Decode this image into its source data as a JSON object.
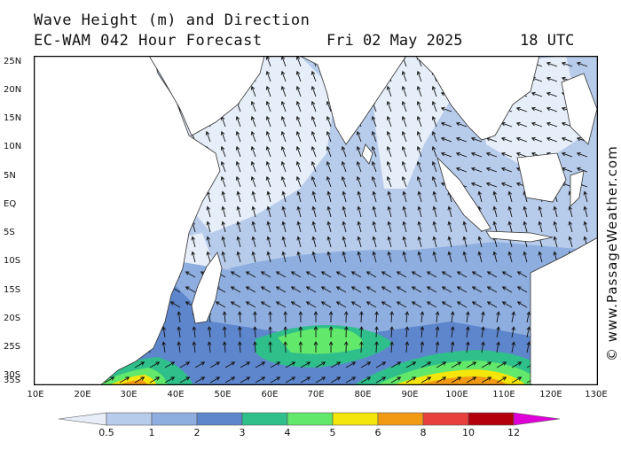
{
  "header": {
    "title": "Wave Height (m) and Direction",
    "model_line": "EC-WAM 042 Hour Forecast",
    "date": "Fri 02 May 2025",
    "time": "18 UTC"
  },
  "credit": "© www.PassageWeather.com",
  "axes": {
    "lat_labels": [
      "25N",
      "20N",
      "15N",
      "10N",
      "5N",
      "EQ",
      "5S",
      "10S",
      "15S",
      "20S",
      "25S",
      "30S",
      "35S"
    ],
    "lon_labels": [
      "10E",
      "20E",
      "30E",
      "40E",
      "50E",
      "60E",
      "70E",
      "80E",
      "90E",
      "100E",
      "110E",
      "120E",
      "130E"
    ],
    "lat_range": [
      -36,
      26
    ],
    "lon_range": [
      10,
      130
    ]
  },
  "legend": {
    "labels": [
      "0.5",
      "1",
      "2",
      "3",
      "4",
      "5",
      "6",
      "8",
      "10",
      "12"
    ],
    "colors": [
      "#e8eef8",
      "#b7cbea",
      "#8eaee0",
      "#5e86cc",
      "#2fbf8a",
      "#62e86a",
      "#f4e60a",
      "#f39a14",
      "#e8403c",
      "#b4000a",
      "#e000d8"
    ]
  },
  "colors": {
    "land": "#ffffff",
    "sea_calm": "#e6eef9",
    "sea_low": "#b7cbea",
    "sea_mid": "#8eaee0",
    "sea_high": "#5e86cc",
    "arrow": "#111111",
    "frame": "#000000"
  }
}
